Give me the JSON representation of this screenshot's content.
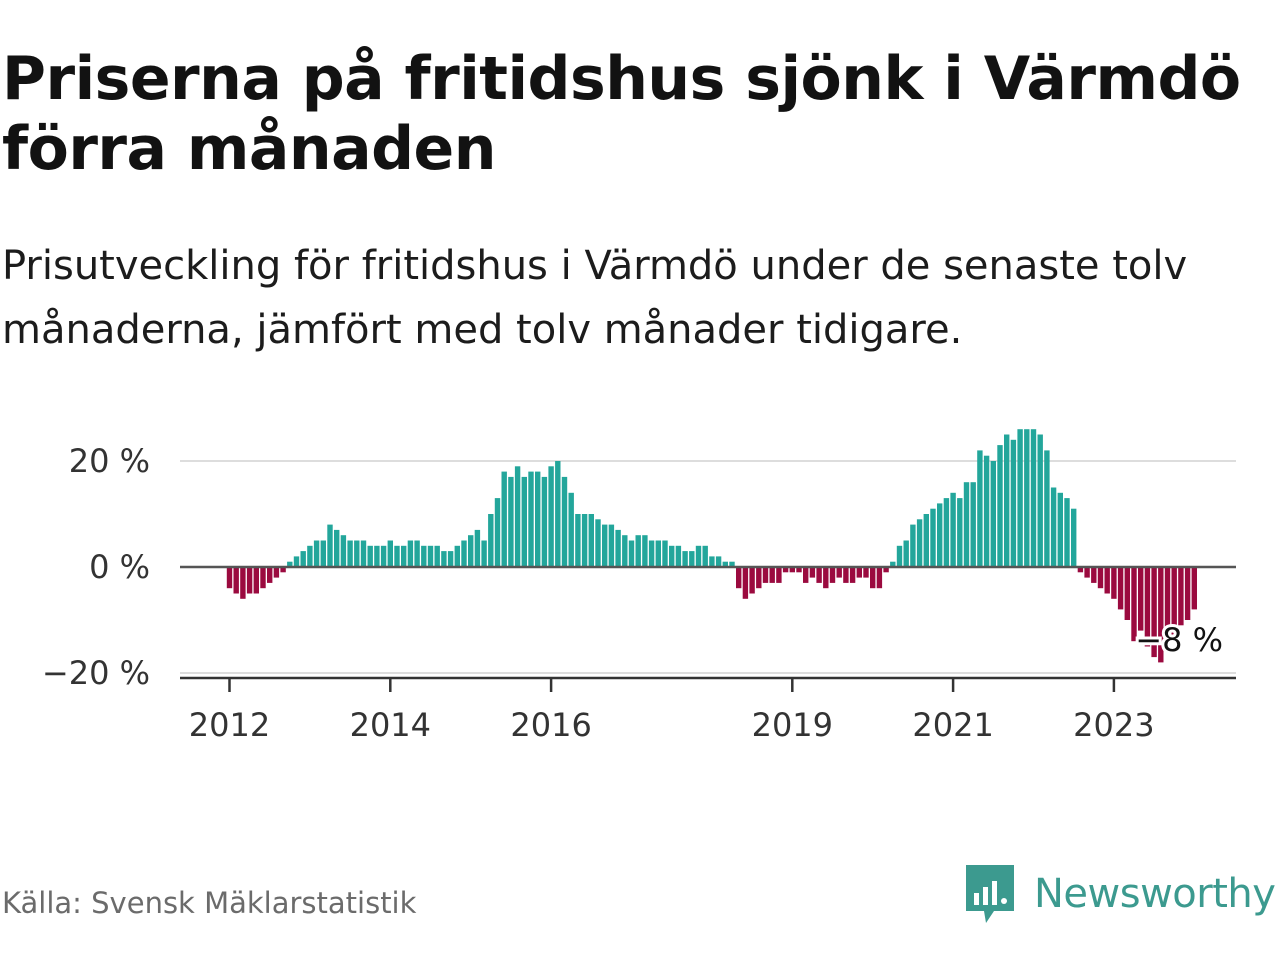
{
  "title": "Priserna på fritidshus sjönk i Värmdö förra månaden",
  "subtitle": "Prisutveckling för fritidshus i Värmdö under de senaste tolv månaderna, jämfört med tolv månader tidigare.",
  "source": "Källa: Svensk Mäklarstatistik",
  "brand": "Newsworthy",
  "colors": {
    "positive": "#23a69b",
    "negative": "#9b0a3f",
    "brand": "#3c9a8f"
  },
  "chart_data": {
    "type": "bar",
    "unit": "%",
    "title": "",
    "xlabel": "",
    "ylabel": "",
    "ylim": [
      -20,
      30
    ],
    "yticks": [
      {
        "value": 20,
        "label": "20 %"
      },
      {
        "value": 0,
        "label": "0 %"
      },
      {
        "value": -20,
        "label": "−20 %"
      }
    ],
    "xticks": [
      {
        "year": 2012,
        "label": "2012"
      },
      {
        "year": 2014,
        "label": "2014"
      },
      {
        "year": 2016,
        "label": "2016"
      },
      {
        "year": 2019,
        "label": "2019"
      },
      {
        "year": 2021,
        "label": "2021"
      },
      {
        "year": 2023,
        "label": "2023"
      }
    ],
    "start": "2012-01",
    "values": [
      -4,
      -5,
      -6,
      -5,
      -5,
      -4,
      -3,
      -2,
      -1,
      1,
      2,
      3,
      4,
      5,
      5,
      8,
      7,
      6,
      5,
      5,
      5,
      4,
      4,
      4,
      5,
      4,
      4,
      5,
      5,
      4,
      4,
      4,
      3,
      3,
      4,
      5,
      6,
      7,
      5,
      10,
      13,
      18,
      17,
      19,
      17,
      18,
      18,
      17,
      19,
      20,
      17,
      14,
      10,
      10,
      10,
      9,
      8,
      8,
      7,
      6,
      5,
      6,
      6,
      5,
      5,
      5,
      4,
      4,
      3,
      3,
      4,
      4,
      2,
      2,
      1,
      1,
      -4,
      -6,
      -5,
      -4,
      -3,
      -3,
      -3,
      -1,
      -1,
      -1,
      -3,
      -2,
      -3,
      -4,
      -3,
      -2,
      -3,
      -3,
      -2,
      -2,
      -4,
      -4,
      -1,
      1,
      4,
      5,
      8,
      9,
      10,
      11,
      12,
      13,
      14,
      13,
      16,
      16,
      22,
      21,
      20,
      23,
      25,
      24,
      26,
      26,
      26,
      25,
      22,
      15,
      14,
      13,
      11,
      -1,
      -2,
      -3,
      -4,
      -5,
      -6,
      -8,
      -10,
      -14,
      -12,
      -15,
      -17,
      -18,
      -14,
      -13,
      -11,
      -10,
      -8
    ],
    "annotation": {
      "label": "−8 %",
      "index": 144
    }
  }
}
